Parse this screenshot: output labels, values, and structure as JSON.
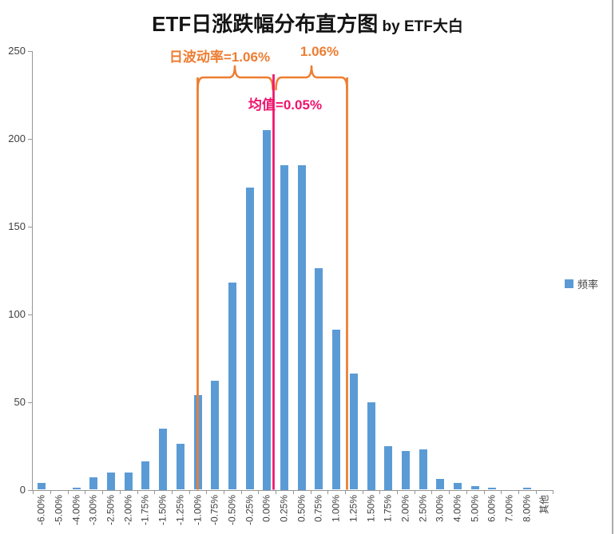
{
  "title": {
    "main": "ETF日涨跌幅分布直方图",
    "suffix": " by ETF大白"
  },
  "legend": {
    "label": "频率"
  },
  "annotations": {
    "volatility_left_label": "日波动率=1.06%",
    "volatility_right_label": "1.06%",
    "mean_label": "均值=0.05%",
    "accent_orange": "#ED7D31",
    "accent_pink": "#F0146E"
  },
  "chart_data": {
    "type": "bar",
    "title": "ETF日涨跌幅分布直方图 by ETF大白",
    "categories": [
      "-6.00%",
      "-5.00%",
      "-4.00%",
      "-3.00%",
      "-2.50%",
      "-2.00%",
      "-1.75%",
      "-1.50%",
      "-1.25%",
      "-1.00%",
      "-0.75%",
      "-0.50%",
      "-0.25%",
      "0.00%",
      "0.25%",
      "0.50%",
      "0.75%",
      "1.00%",
      "1.25%",
      "1.50%",
      "1.75%",
      "2.00%",
      "2.50%",
      "3.00%",
      "4.00%",
      "5.00%",
      "6.00%",
      "7.00%",
      "8.00%",
      "其他"
    ],
    "series": [
      {
        "name": "频率",
        "values": [
          4,
          0,
          1,
          7,
          10,
          10,
          16,
          35,
          26,
          54,
          62,
          118,
          172,
          205,
          185,
          185,
          126,
          91,
          66,
          50,
          25,
          22,
          23,
          6,
          4,
          2,
          1,
          0,
          1,
          0
        ]
      }
    ],
    "xlabel": "",
    "ylabel": "",
    "ylim": [
      0,
      250
    ],
    "yticks": [
      0,
      50,
      100,
      150,
      200,
      250
    ],
    "bar_color": "#5B9BD5",
    "axis_color": "#969696",
    "grid": false,
    "legend_position": "right",
    "annotations": {
      "mean_line": {
        "text": "均值=0.05%",
        "between_categories": [
          "0.00%",
          "0.25%"
        ],
        "color": "#F0146E"
      },
      "volatility_brackets": {
        "left_text": "日波动率=1.06%",
        "right_text": "1.06%",
        "color": "#ED7D31",
        "left_line_at_category": "-1.00%",
        "right_line_between_categories": [
          "1.00%",
          "1.25%"
        ]
      }
    }
  }
}
